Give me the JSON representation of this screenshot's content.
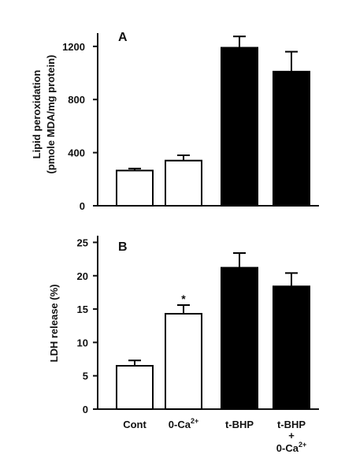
{
  "chart_data": [
    {
      "type": "bar",
      "panel": "A",
      "categories": [
        "Cont",
        "0-Ca²⁺",
        "t-BHP",
        "t-BHP + 0-Ca²⁺"
      ],
      "values": [
        265,
        340,
        1190,
        1010
      ],
      "errors": [
        15,
        40,
        85,
        150
      ],
      "bar_fills": [
        "white",
        "white",
        "black",
        "black"
      ],
      "ylabel_line1": "Lipid peroxidation",
      "ylabel_line2": "(pmole MDA/mg protein)",
      "ylim": [
        0,
        1300
      ],
      "yticks": [
        0,
        400,
        800,
        1200
      ],
      "annotations": []
    },
    {
      "type": "bar",
      "panel": "B",
      "categories": [
        "Cont",
        "0-Ca²⁺",
        "t-BHP",
        "t-BHP + 0-Ca²⁺"
      ],
      "values": [
        6.5,
        14.3,
        21.2,
        18.4
      ],
      "errors": [
        0.8,
        1.3,
        2.2,
        2.0
      ],
      "bar_fills": [
        "white",
        "white",
        "black",
        "black"
      ],
      "ylabel_line1": "LDH release (%)",
      "ylim": [
        0,
        26
      ],
      "yticks": [
        0,
        5,
        10,
        15,
        20,
        25
      ],
      "annotations": [
        {
          "category_index": 1,
          "text": "*"
        }
      ]
    }
  ],
  "x_labels": {
    "cont": "Cont",
    "ca_base": "0-Ca",
    "ca_sup": "2+",
    "tbhp": "t-BHP",
    "plus": "+"
  }
}
